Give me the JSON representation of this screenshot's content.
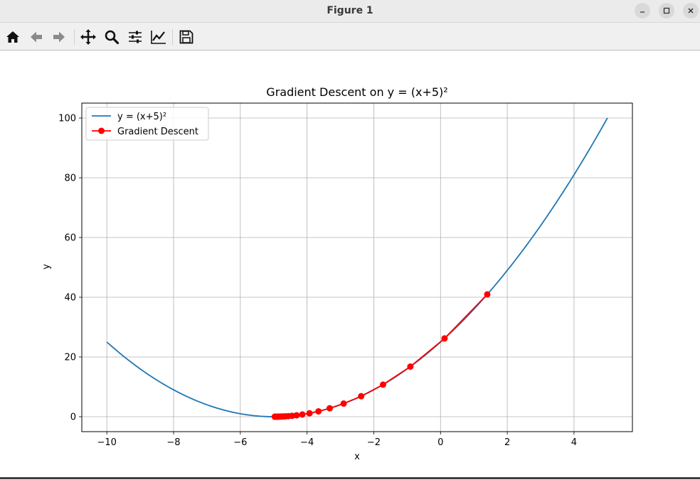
{
  "window": {
    "title": "Figure 1",
    "controls": [
      "minimize-icon",
      "maximize-icon",
      "close-icon"
    ]
  },
  "toolbar": {
    "buttons": [
      "home-icon",
      "back-icon",
      "forward-icon",
      "pan-icon",
      "zoom-icon",
      "subplots-icon",
      "axes-edit-icon",
      "save-icon"
    ]
  },
  "chart_data": {
    "type": "line",
    "title": "Gradient Descent on y = (x+5)²",
    "xlabel": "x",
    "ylabel": "y",
    "xlim": [
      -10.75,
      5.75
    ],
    "ylim": [
      -5,
      105
    ],
    "xticks": [
      -10,
      -8,
      -6,
      -4,
      -2,
      0,
      2,
      4
    ],
    "xtick_labels": [
      "−10",
      "−8",
      "−6",
      "−4",
      "−2",
      "0",
      "2",
      "4"
    ],
    "yticks": [
      0,
      20,
      40,
      60,
      80,
      100
    ],
    "ytick_labels": [
      "0",
      "20",
      "40",
      "60",
      "80",
      "100"
    ],
    "grid": true,
    "legend": "upper-left",
    "series": [
      {
        "name": "y = (x+5)²",
        "color": "#1f77b4",
        "style": "line",
        "function": "(x+5)^2",
        "x_range": [
          -10,
          5
        ]
      },
      {
        "name": "Gradient Descent",
        "color": "#ff0000",
        "style": "line-marker",
        "x": [
          1.4,
          0.12,
          -0.904,
          -1.723,
          -2.379,
          -2.903,
          -3.322,
          -3.658,
          -3.926,
          -4.141,
          -4.313,
          -4.45,
          -4.56,
          -4.648,
          -4.719,
          -4.775,
          -4.82,
          -4.856,
          -4.885,
          -4.908,
          -4.926,
          -4.941,
          -4.953,
          -4.962,
          -4.97
        ],
        "y": [
          40.96,
          26.21,
          16.78,
          10.74,
          6.87,
          4.4,
          2.82,
          1.8,
          1.15,
          0.74,
          0.47,
          0.3,
          0.19,
          0.12,
          0.08,
          0.05,
          0.03,
          0.02,
          0.01,
          0.01,
          0.01,
          0.0,
          0.0,
          0.0,
          0.0
        ]
      }
    ]
  }
}
